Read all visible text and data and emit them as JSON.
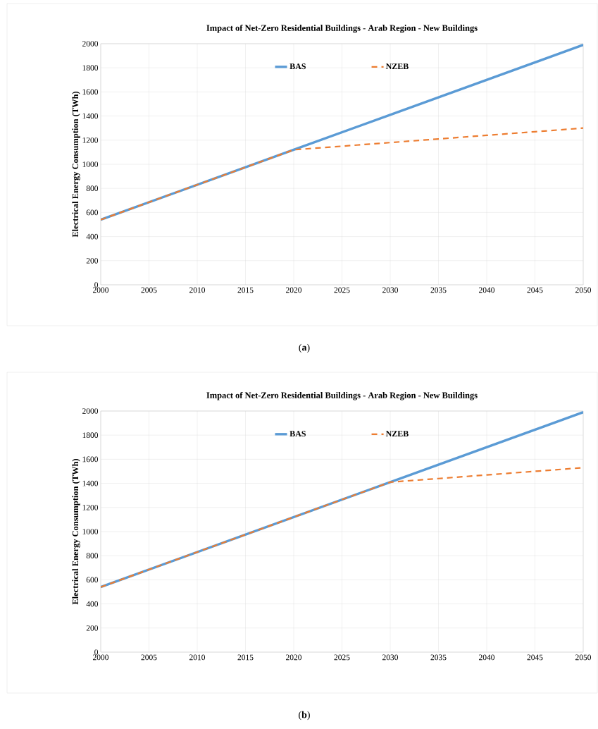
{
  "chart_data": [
    {
      "type": "line",
      "title": "Impact of  Net-Zero Residential Buildings - Arab Region - New Buildings",
      "ylabel": "Electrical Energy Consumption (TWh)",
      "annotations": [
        "(**a**)"
      ],
      "xlim": [
        2000,
        2050
      ],
      "xticks": [
        2000,
        2005,
        2010,
        2015,
        2020,
        2025,
        2030,
        2035,
        2040,
        2045,
        2050
      ],
      "ylim": [
        0,
        2000
      ],
      "yticks": [
        0,
        200,
        400,
        600,
        800,
        1000,
        1200,
        1400,
        1600,
        1800,
        2000
      ],
      "grid": true,
      "legend": "top",
      "marker": "none",
      "series": [
        {
          "name": "BAS",
          "color": "#5b9bd5",
          "line_style": "solid",
          "x": [
            2000,
            2020,
            2030,
            2050
          ],
          "values": [
            540,
            1120,
            1410,
            1990
          ]
        },
        {
          "name": "NZEB",
          "color": "#ed7d31",
          "line_style": "dashed",
          "x": [
            2000,
            2020,
            2025,
            2030,
            2035,
            2040,
            2045,
            2050
          ],
          "values": [
            540,
            1120,
            1150,
            1180,
            1210,
            1240,
            1270,
            1300
          ]
        }
      ]
    },
    {
      "type": "line",
      "title": "Impact of  Net-Zero Residential Buildings - Arab Region - New Buildings",
      "ylabel": "Electrical Energy Consumption (TWh)",
      "annotations": [
        "(**b**)"
      ],
      "xlim": [
        2000,
        2050
      ],
      "xticks": [
        2000,
        2005,
        2010,
        2015,
        2020,
        2025,
        2030,
        2035,
        2040,
        2045,
        2050
      ],
      "ylim": [
        0,
        2000
      ],
      "yticks": [
        0,
        200,
        400,
        600,
        800,
        1000,
        1200,
        1400,
        1600,
        1800,
        2000
      ],
      "grid": true,
      "legend": "top",
      "marker": "none",
      "series": [
        {
          "name": "BAS",
          "color": "#5b9bd5",
          "line_style": "solid",
          "x": [
            2000,
            2030,
            2050
          ],
          "values": [
            540,
            1410,
            1990
          ]
        },
        {
          "name": "NZEB",
          "color": "#ed7d31",
          "line_style": "dashed",
          "x": [
            2000,
            2030,
            2035,
            2040,
            2045,
            2050
          ],
          "values": [
            540,
            1410,
            1440,
            1470,
            1500,
            1530
          ]
        }
      ]
    }
  ]
}
